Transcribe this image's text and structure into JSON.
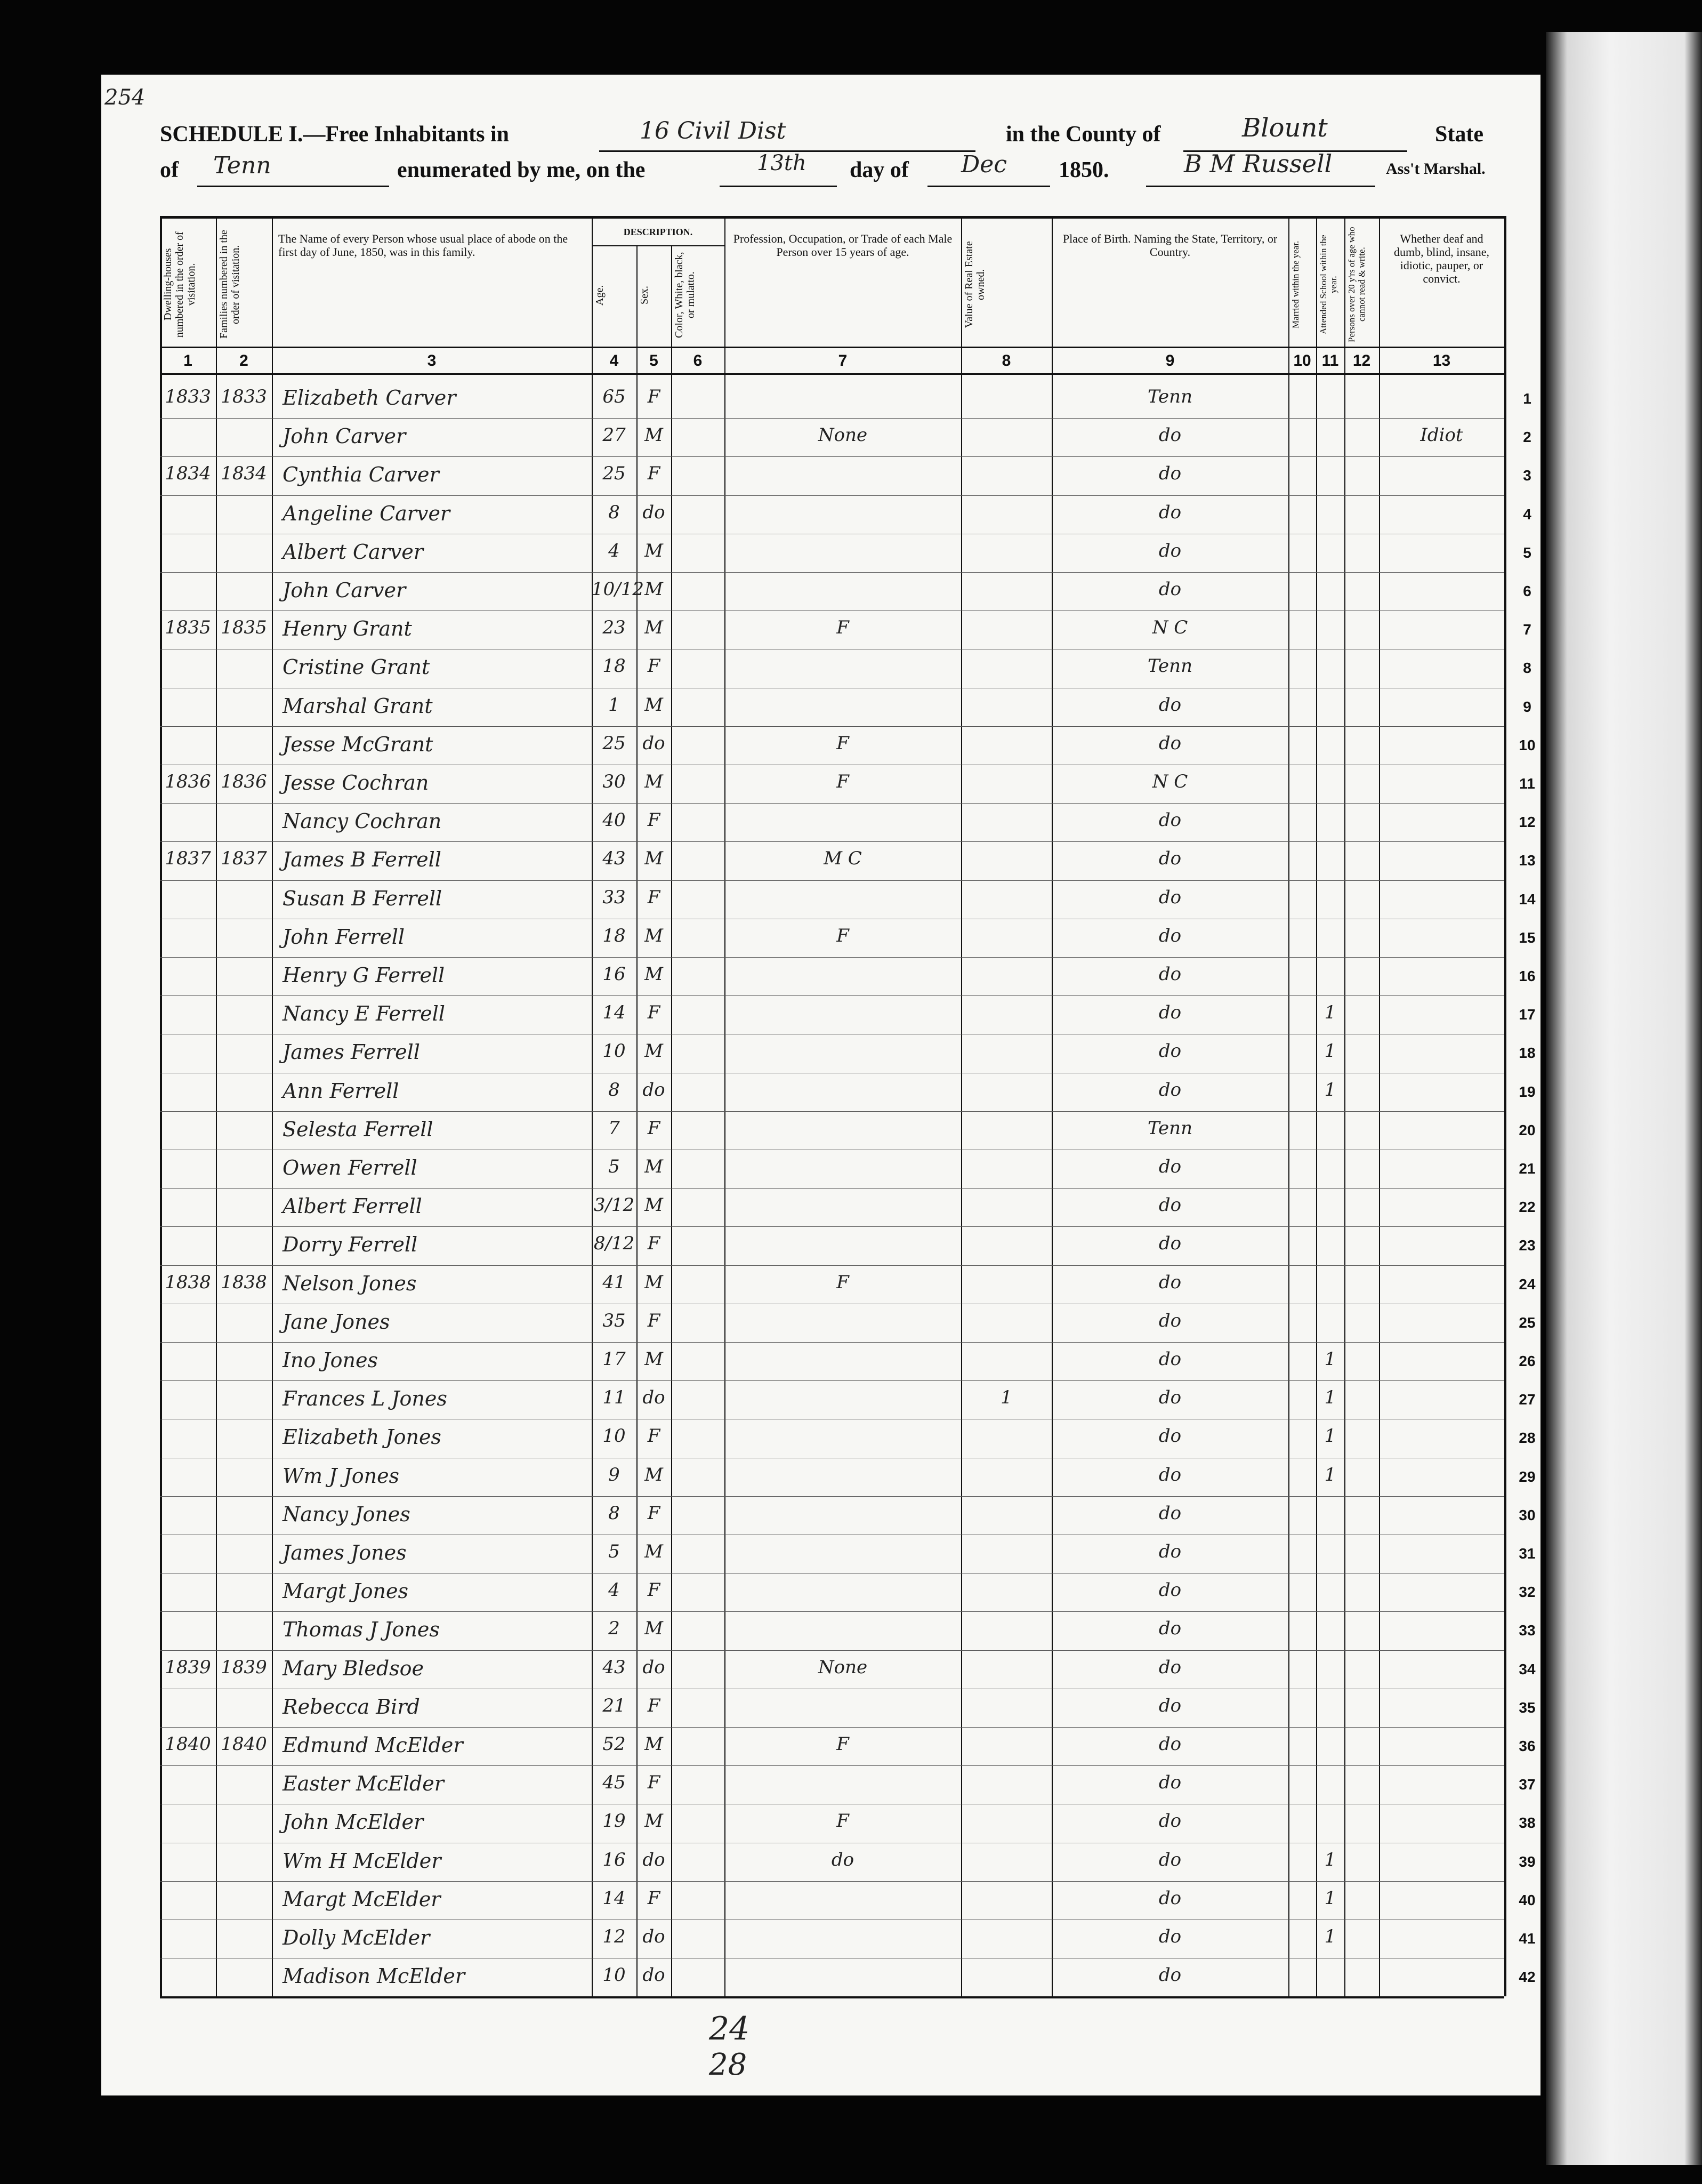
{
  "header": {
    "page_number": "254",
    "title_prefix": "SCHEDULE I.—Free Inhabitants in",
    "district": "16 Civil Dist",
    "county_label": "in the County of",
    "county": "Blount",
    "state_label": "State",
    "of_label": "of",
    "state": "Tenn",
    "enumerated_label": "enumerated by me, on the",
    "day": "13th",
    "day_of_label": "day of",
    "month": "Dec",
    "year": "1850.",
    "marshal": "B M Russell",
    "marshal_label": "Ass't Marshal."
  },
  "table": {
    "description_label": "DESCRIPTION.",
    "columns": [
      {
        "number": 1,
        "heading": "Dwelling-houses numbered in the order of visitation."
      },
      {
        "number": 2,
        "heading": "Families numbered in the order of visitation."
      },
      {
        "number": 3,
        "heading": "The Name of every Person whose usual place of abode on the first day of June, 1850, was in this family."
      },
      {
        "number": 4,
        "heading": "Age."
      },
      {
        "number": 5,
        "heading": "Sex."
      },
      {
        "number": 6,
        "heading": "Color, White, black, or mulatto."
      },
      {
        "number": 7,
        "heading": "Profession, Occupation, or Trade of each Male Person over 15 years of age."
      },
      {
        "number": 8,
        "heading": "Value of Real Estate owned."
      },
      {
        "number": 9,
        "heading": "Place of Birth. Naming the State, Territory, or Country."
      },
      {
        "number": 10,
        "heading": "Married within the year."
      },
      {
        "number": 11,
        "heading": "Attended School within the year."
      },
      {
        "number": 12,
        "heading": "Persons over 20 y'rs of age who cannot read & write."
      },
      {
        "number": 13,
        "heading": "Whether deaf and dumb, blind, insane, idiotic, pauper, or convict."
      }
    ],
    "rows": [
      [
        1,
        1833,
        1833,
        "Elizabeth Carver",
        65,
        "F",
        null,
        null,
        "Tenn",
        null,
        null
      ],
      [
        2,
        null,
        null,
        "John Carver",
        27,
        "M",
        "None",
        null,
        "do",
        null,
        "Idiot"
      ],
      [
        3,
        1834,
        1834,
        "Cynthia Carver",
        25,
        "F",
        null,
        null,
        "do",
        null,
        null
      ],
      [
        4,
        null,
        null,
        "Angeline Carver",
        8,
        "do",
        null,
        null,
        "do",
        null,
        null
      ],
      [
        5,
        null,
        null,
        "Albert Carver",
        4,
        "M",
        null,
        null,
        "do",
        null,
        null
      ],
      [
        6,
        null,
        null,
        "John Carver",
        "10/12",
        "M",
        null,
        null,
        "do",
        null,
        null
      ],
      [
        7,
        1835,
        1835,
        "Henry Grant",
        23,
        "M",
        "F",
        null,
        "N C",
        null,
        null
      ],
      [
        8,
        null,
        null,
        "Cristine Grant",
        18,
        "F",
        null,
        null,
        "Tenn",
        null,
        null
      ],
      [
        9,
        null,
        null,
        "Marshal Grant",
        1,
        "M",
        null,
        null,
        "do",
        null,
        null
      ],
      [
        10,
        null,
        null,
        "Jesse McGrant",
        25,
        "do",
        "F",
        null,
        "do",
        null,
        null
      ],
      [
        11,
        1836,
        1836,
        "Jesse Cochran",
        30,
        "M",
        "F",
        null,
        "N C",
        null,
        null
      ],
      [
        12,
        null,
        null,
        "Nancy Cochran",
        40,
        "F",
        null,
        null,
        "do",
        null,
        null
      ],
      [
        13,
        1837,
        1837,
        "James B Ferrell",
        43,
        "M",
        "M C",
        null,
        "do",
        null,
        null
      ],
      [
        14,
        null,
        null,
        "Susan B Ferrell",
        33,
        "F",
        null,
        null,
        "do",
        null,
        null
      ],
      [
        15,
        null,
        null,
        "John Ferrell",
        18,
        "M",
        "F",
        null,
        "do",
        null,
        null
      ],
      [
        16,
        null,
        null,
        "Henry G Ferrell",
        16,
        "M",
        null,
        null,
        "do",
        null,
        null
      ],
      [
        17,
        null,
        null,
        "Nancy E Ferrell",
        14,
        "F",
        null,
        null,
        "do",
        1,
        null
      ],
      [
        18,
        null,
        null,
        "James Ferrell",
        10,
        "M",
        null,
        null,
        "do",
        1,
        null
      ],
      [
        19,
        null,
        null,
        "Ann Ferrell",
        8,
        "do",
        null,
        null,
        "do",
        1,
        null
      ],
      [
        20,
        null,
        null,
        "Selesta Ferrell",
        7,
        "F",
        null,
        null,
        "Tenn",
        null,
        null
      ],
      [
        21,
        null,
        null,
        "Owen Ferrell",
        5,
        "M",
        null,
        null,
        "do",
        null,
        null
      ],
      [
        22,
        null,
        null,
        "Albert Ferrell",
        "3/12",
        "M",
        null,
        null,
        "do",
        null,
        null
      ],
      [
        23,
        null,
        null,
        "Dorry Ferrell",
        "8/12",
        "F",
        null,
        null,
        "do",
        null,
        null
      ],
      [
        24,
        1838,
        1838,
        "Nelson Jones",
        41,
        "M",
        "F",
        null,
        "do",
        null,
        null
      ],
      [
        25,
        null,
        null,
        "Jane Jones",
        35,
        "F",
        null,
        null,
        "do",
        null,
        null
      ],
      [
        26,
        null,
        null,
        "Ino Jones",
        17,
        "M",
        null,
        null,
        "do",
        1,
        null
      ],
      [
        27,
        null,
        null,
        "Frances L Jones",
        11,
        "do",
        null,
        1,
        "do",
        1,
        null
      ],
      [
        28,
        null,
        null,
        "Elizabeth Jones",
        10,
        "F",
        null,
        null,
        "do",
        1,
        null
      ],
      [
        29,
        null,
        null,
        "Wm J Jones",
        9,
        "M",
        null,
        null,
        "do",
        1,
        null
      ],
      [
        30,
        null,
        null,
        "Nancy Jones",
        8,
        "F",
        null,
        null,
        "do",
        null,
        null
      ],
      [
        31,
        null,
        null,
        "James Jones",
        5,
        "M",
        null,
        null,
        "do",
        null,
        null
      ],
      [
        32,
        null,
        null,
        "Margt Jones",
        4,
        "F",
        null,
        null,
        "do",
        null,
        null
      ],
      [
        33,
        null,
        null,
        "Thomas J Jones",
        2,
        "M",
        null,
        null,
        "do",
        null,
        null
      ],
      [
        34,
        1839,
        1839,
        "Mary Bledsoe",
        43,
        "do",
        "None",
        null,
        "do",
        null,
        null
      ],
      [
        35,
        null,
        null,
        "Rebecca Bird",
        21,
        "F",
        null,
        null,
        "do",
        null,
        null
      ],
      [
        36,
        1840,
        1840,
        "Edmund McElder",
        52,
        "M",
        "F",
        null,
        "do",
        null,
        null
      ],
      [
        37,
        null,
        null,
        "Easter McElder",
        45,
        "F",
        null,
        null,
        "do",
        null,
        null
      ],
      [
        38,
        null,
        null,
        "John McElder",
        19,
        "M",
        "F",
        null,
        "do",
        null,
        null
      ],
      [
        39,
        null,
        null,
        "Wm H McElder",
        16,
        "do",
        "do",
        null,
        "do",
        1,
        null
      ],
      [
        40,
        null,
        null,
        "Margt McElder",
        14,
        "F",
        null,
        null,
        "do",
        1,
        null
      ],
      [
        41,
        null,
        null,
        "Dolly McElder",
        12,
        "do",
        null,
        null,
        "do",
        1,
        null
      ],
      [
        42,
        null,
        null,
        "Madison McElder",
        10,
        "do",
        null,
        null,
        "do",
        null,
        null
      ]
    ],
    "tally": [
      "24",
      "28"
    ]
  }
}
